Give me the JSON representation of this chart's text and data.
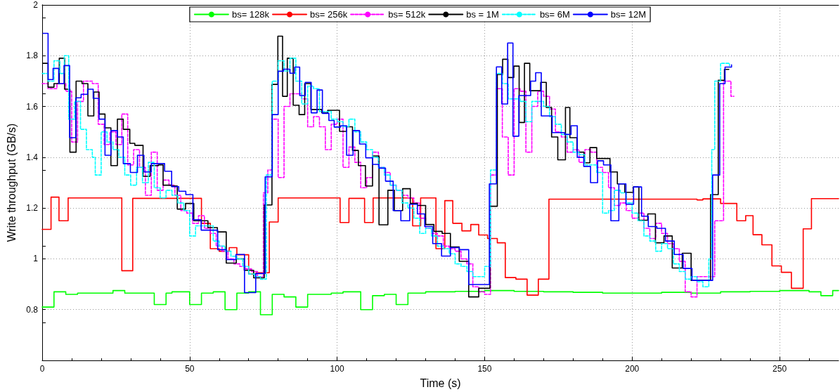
{
  "chart_data": {
    "type": "step",
    "xlabel": "Time (s)",
    "ylabel": "Write throughput (GB/s)",
    "xlim": [
      0,
      270
    ],
    "xticks": [
      0,
      50,
      100,
      150,
      200,
      250
    ],
    "ylim": [
      0.6,
      2
    ],
    "yticks": [
      {
        "value": 0.6,
        "label": null
      },
      0.8,
      1,
      1.2,
      1.4,
      1.6,
      1.8,
      2
    ],
    "grid": true,
    "legend": "top",
    "marker": "none",
    "series": [
      {
        "name": "bs= 128k",
        "color": "#00ff00",
        "line_style": "solid",
        "x": [
          0,
          4,
          8,
          12,
          16,
          20,
          24,
          28,
          32,
          38,
          42,
          44,
          50,
          54,
          58,
          62,
          66,
          70,
          74,
          78,
          82,
          86,
          90,
          94,
          98,
          102,
          108,
          112,
          116,
          120,
          124,
          130,
          140,
          150,
          160,
          170,
          180,
          190,
          200,
          210,
          220,
          230,
          240,
          250,
          260,
          264,
          268,
          270
        ],
        "values": [
          0.81,
          0.87,
          0.86,
          0.865,
          0.865,
          0.865,
          0.875,
          0.865,
          0.865,
          0.82,
          0.865,
          0.87,
          0.82,
          0.865,
          0.87,
          0.8,
          0.865,
          0.87,
          0.78,
          0.86,
          0.85,
          0.81,
          0.86,
          0.86,
          0.865,
          0.87,
          0.8,
          0.855,
          0.86,
          0.82,
          0.865,
          0.87,
          0.872,
          0.875,
          0.872,
          0.87,
          0.868,
          0.865,
          0.865,
          0.868,
          0.865,
          0.87,
          0.872,
          0.875,
          0.87,
          0.855,
          0.875,
          0.875
        ]
      },
      {
        "name": "bs= 256k",
        "color": "#ff0000",
        "line_style": "solid",
        "x": [
          0,
          3,
          5.7,
          8.8,
          27,
          30.7,
          54,
          57,
          60,
          63.4,
          66,
          70,
          72.5,
          77,
          80,
          101,
          104,
          109.3,
          112.2,
          125.6,
          128.3,
          133.5,
          136.5,
          139.2,
          142.3,
          145.3,
          148,
          151,
          154.3,
          157,
          160.6,
          164.4,
          168.2,
          171.8,
          222,
          224,
          230,
          235.5,
          238.5,
          241,
          244,
          247.4,
          250.6,
          254,
          258,
          260.8,
          270
        ],
        "values": [
          1.116,
          1.243,
          1.15,
          1.24,
          0.953,
          1.238,
          1.14,
          1.04,
          1.03,
          1.044,
          1.016,
          0.94,
          0.945,
          1.145,
          1.24,
          1.143,
          1.238,
          1.143,
          1.24,
          1.13,
          1.24,
          1.04,
          1.229,
          1.14,
          1.11,
          1.135,
          1.094,
          1.08,
          1.063,
          0.926,
          0.92,
          0.857,
          0.92,
          1.235,
          1.232,
          1.236,
          1.218,
          1.15,
          1.17,
          1.095,
          1.055,
          0.972,
          0.947,
          0.884,
          1.118,
          1.237,
          1.237
        ]
      },
      {
        "name": "bs= 512k",
        "color": "#ff00ff",
        "line_style": "dashed",
        "x": [
          0,
          2,
          5,
          8,
          10,
          12,
          14,
          17,
          19,
          21,
          23,
          25,
          27,
          29,
          31,
          33,
          35,
          37,
          39,
          41,
          43,
          45,
          47,
          49,
          51,
          53,
          55,
          57,
          59,
          61,
          63,
          65,
          67,
          69,
          71,
          73,
          75,
          76.5,
          78,
          80,
          82,
          84,
          86,
          88,
          90,
          92,
          94,
          96,
          98,
          100,
          102,
          104,
          106,
          108,
          110,
          112,
          114,
          116,
          118,
          120,
          122,
          124,
          126,
          128,
          130,
          132,
          134,
          136,
          138,
          140,
          142,
          144,
          146,
          148,
          150,
          152,
          154,
          156,
          158,
          160,
          162,
          164,
          166,
          168,
          170,
          172,
          174,
          176,
          178,
          180,
          182,
          184,
          186,
          188,
          190,
          192,
          194,
          196,
          198,
          200,
          202,
          204,
          206,
          208,
          210,
          212,
          214,
          216,
          218,
          220,
          222,
          224,
          226,
          228,
          231,
          233.5,
          234.5
        ],
        "values": [
          1.69,
          1.67,
          1.69,
          1.66,
          1.46,
          1.62,
          1.7,
          1.69,
          1.53,
          1.45,
          1.5,
          1.45,
          1.57,
          1.37,
          1.43,
          1.36,
          1.25,
          1.42,
          1.27,
          1.31,
          1.29,
          1.25,
          1.19,
          1.18,
          1.14,
          1.17,
          1.12,
          1.1,
          1.05,
          1.03,
          1.0,
          0.98,
          0.97,
          0.96,
          0.95,
          0.93,
          1.26,
          1.35,
          1.55,
          1.32,
          1.6,
          1.65,
          1.65,
          1.63,
          1.52,
          1.56,
          1.52,
          1.43,
          1.53,
          1.55,
          1.36,
          1.44,
          1.38,
          1.28,
          1.32,
          1.42,
          1.36,
          1.34,
          1.29,
          1.27,
          1.25,
          1.24,
          1.22,
          1.16,
          1.12,
          1.1,
          1.09,
          1.05,
          1.04,
          1.03,
          1.0,
          0.98,
          0.89,
          0.87,
          0.86,
          1.33,
          1.67,
          1.48,
          1.33,
          1.67,
          1.66,
          1.42,
          1.6,
          1.66,
          1.64,
          1.59,
          1.5,
          1.48,
          1.42,
          1.43,
          1.38,
          1.43,
          1.42,
          1.36,
          1.34,
          1.28,
          1.21,
          1.22,
          1.19,
          1.16,
          1.18,
          1.12,
          1.08,
          1.14,
          1.1,
          1.06,
          1.04,
          0.99,
          0.87,
          0.85,
          0.93,
          0.93,
          0.93,
          1.15,
          1.7,
          1.64,
          1.64
        ]
      },
      {
        "name": "bs = 1M",
        "color": "#000000",
        "line_style": "solid",
        "x": [
          0.3,
          2,
          4,
          5.8,
          7.6,
          9.4,
          11.5,
          13.5,
          15.5,
          17.5,
          19.3,
          21.3,
          23.3,
          25.5,
          27.5,
          29.7,
          31.4,
          34.2,
          36.6,
          39.4,
          41,
          43.8,
          45.8,
          48.6,
          51.4,
          56.2,
          59.4,
          62.4,
          65.8,
          68.5,
          71.7,
          75.3,
          77.9,
          79.9,
          81.5,
          83.1,
          85.1,
          87.1,
          89,
          91.1,
          94.8,
          96.8,
          100.8,
          103.2,
          105.2,
          107.2,
          109.6,
          112,
          114.2,
          117.2,
          119.4,
          122.2,
          124.8,
          127.2,
          130,
          132.8,
          135.6,
          138.4,
          141.4,
          144.6,
          148,
          151.8,
          154.3,
          156.1,
          157.9,
          159.9,
          161.7,
          163.5,
          165.3,
          169,
          170.9,
          172.7,
          174.8,
          177.4,
          178.9,
          181.3,
          183.7,
          185.7,
          188,
          192.5,
          195,
          197.5,
          200.4,
          202.3,
          205.3,
          207.9,
          210.8,
          213.6,
          217,
          220,
          226.6,
          229.2,
          231.3,
          232.8
        ],
        "values": [
          1.77,
          1.676,
          1.69,
          1.79,
          1.668,
          1.42,
          1.7,
          1.69,
          1.563,
          1.657,
          1.57,
          1.516,
          1.367,
          1.55,
          1.51,
          1.455,
          1.447,
          1.325,
          1.367,
          1.37,
          1.29,
          1.287,
          1.196,
          1.218,
          1.15,
          1.123,
          1.106,
          0.983,
          1.0,
          0.955,
          0.925,
          1.212,
          1.687,
          1.877,
          1.64,
          1.79,
          1.605,
          1.568,
          1.69,
          1.588,
          1.575,
          1.585,
          1.502,
          1.52,
          1.427,
          1.367,
          1.287,
          1.405,
          1.134,
          1.27,
          1.19,
          1.276,
          1.218,
          1.21,
          1.135,
          1.108,
          1.1,
          1.047,
          0.99,
          0.85,
          0.884,
          1.207,
          1.726,
          1.786,
          1.714,
          1.759,
          1.537,
          1.77,
          1.662,
          1.695,
          1.596,
          1.48,
          1.39,
          1.596,
          1.477,
          1.42,
          1.378,
          1.438,
          1.395,
          1.342,
          1.295,
          1.262,
          1.283,
          1.152,
          1.177,
          1.063,
          1.09,
          0.964,
          1.022,
          0.915,
          1.253,
          1.703,
          1.746,
          1.746
        ]
      },
      {
        "name": "bs= 6M",
        "color": "#00ffff",
        "line_style": "dashed",
        "x": [
          0,
          2,
          4,
          6,
          7.5,
          9,
          11,
          13,
          15,
          17,
          18,
          20,
          22,
          24,
          26,
          28,
          30,
          32,
          34,
          36,
          38,
          40,
          42,
          44,
          46,
          48,
          50,
          52,
          56,
          58,
          60,
          62,
          64,
          66,
          68,
          70,
          72,
          74,
          76,
          78,
          80,
          82,
          84,
          86,
          88,
          90,
          92,
          94,
          98,
          100,
          102,
          104,
          106,
          108,
          110,
          112,
          114,
          116,
          118,
          120,
          122,
          124,
          126,
          128,
          130,
          132,
          134,
          136,
          138,
          140,
          142,
          144,
          146,
          150,
          152,
          154,
          156,
          158,
          162,
          164,
          166,
          170,
          172,
          174,
          176,
          178,
          180,
          182,
          184,
          188,
          190,
          192,
          194,
          196,
          198,
          200,
          202,
          204,
          206,
          208,
          210,
          212,
          214,
          216,
          218,
          220,
          222,
          224,
          226,
          227,
          228,
          230,
          233
        ],
        "values": [
          1.73,
          1.7,
          1.78,
          1.73,
          1.8,
          1.55,
          1.62,
          1.51,
          1.43,
          1.4,
          1.33,
          1.5,
          1.46,
          1.43,
          1.4,
          1.33,
          1.29,
          1.36,
          1.3,
          1.38,
          1.28,
          1.24,
          1.27,
          1.25,
          1.22,
          1.19,
          1.09,
          1.13,
          1.13,
          1.07,
          1.05,
          1.03,
          1.01,
          1.0,
          0.97,
          0.94,
          0.93,
          0.92,
          1.33,
          1.7,
          1.78,
          1.74,
          1.79,
          1.7,
          1.61,
          1.68,
          1.67,
          1.58,
          1.55,
          1.54,
          1.52,
          1.55,
          1.5,
          1.46,
          1.43,
          1.4,
          1.36,
          1.33,
          1.29,
          1.27,
          1.22,
          1.2,
          1.16,
          1.1,
          1.12,
          1.09,
          1.05,
          1.04,
          1.02,
          0.98,
          0.97,
          0.95,
          0.93,
          0.97,
          1.35,
          1.73,
          1.69,
          1.63,
          1.62,
          1.54,
          1.62,
          1.6,
          1.56,
          1.53,
          1.49,
          1.46,
          1.42,
          1.41,
          1.37,
          1.34,
          1.18,
          1.19,
          1.27,
          1.26,
          1.22,
          1.18,
          1.15,
          1.09,
          1.07,
          1.03,
          1.06,
          1.04,
          0.98,
          0.95,
          0.92,
          0.93,
          0.91,
          0.89,
          1.0,
          1.43,
          1.7,
          1.77,
          1.76
        ]
      },
      {
        "name": "bs= 12M",
        "color": "#0000ff",
        "line_style": "solid",
        "x": [
          0.3,
          2,
          3.7,
          5.6,
          7.4,
          9.3,
          11.4,
          13.2,
          15.4,
          17.3,
          19.3,
          21.3,
          23.3,
          25.5,
          27.5,
          29.9,
          32.3,
          34.5,
          37,
          41.5,
          43.9,
          46.3,
          48.7,
          51.1,
          53.9,
          59.5,
          62.5,
          65.7,
          68.6,
          72.4,
          75.6,
          78,
          80,
          81.8,
          84,
          85.6,
          87.3,
          89.2,
          91.2,
          93.2,
          95,
          97.2,
          99,
          101.2,
          103.2,
          105.4,
          107.6,
          109.7,
          112,
          114.2,
          116.4,
          119,
          121.6,
          124.6,
          127.2,
          129.7,
          132.4,
          135.4,
          138.4,
          141.4,
          144.6,
          151.6,
          154,
          155.8,
          157.8,
          159.6,
          161.6,
          165.6,
          167.3,
          169.2,
          172.9,
          177.1,
          179.3,
          181.4,
          183.6,
          185.9,
          188.3,
          190.3,
          192.8,
          195.5,
          197.9,
          200.5,
          203.2,
          205.5,
          208.4,
          211.3,
          214.3,
          217.3,
          220.3,
          227.3,
          229.7,
          231.5,
          233.7
        ],
        "values": [
          1.888,
          1.706,
          1.75,
          1.69,
          1.761,
          1.477,
          1.634,
          1.648,
          1.668,
          1.632,
          1.55,
          1.408,
          1.505,
          1.48,
          1.375,
          1.34,
          1.408,
          1.342,
          1.375,
          1.345,
          1.284,
          1.266,
          1.253,
          1.154,
          1.113,
          1.036,
          0.997,
          1.017,
          0.867,
          0.942,
          1.323,
          1.568,
          1.739,
          1.747,
          1.731,
          1.755,
          1.643,
          1.695,
          1.575,
          1.665,
          1.573,
          1.545,
          1.519,
          1.524,
          1.408,
          1.505,
          1.452,
          1.398,
          1.372,
          1.357,
          1.306,
          1.19,
          1.15,
          1.215,
          1.177,
          1.127,
          1.06,
          1.011,
          1.044,
          1.036,
          0.899,
          1.295,
          1.756,
          1.61,
          1.85,
          1.483,
          1.643,
          1.7,
          1.733,
          1.563,
          1.497,
          1.49,
          1.524,
          1.4,
          1.364,
          1.3,
          1.386,
          1.37,
          1.15,
          1.295,
          1.215,
          1.283,
          1.168,
          1.127,
          1.12,
          1.07,
          1.017,
          0.962,
          0.915,
          1.33,
          1.69,
          1.755,
          1.764
        ]
      }
    ]
  }
}
